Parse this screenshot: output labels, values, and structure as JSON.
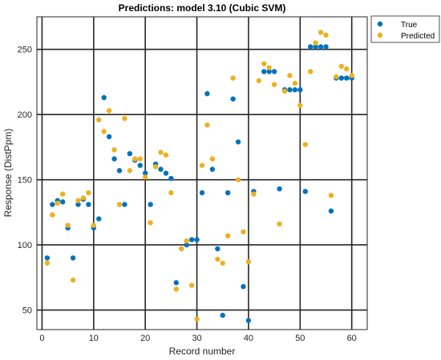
{
  "chart_data": {
    "type": "scatter",
    "title": "Predictions: model 3.10 (Cubic SVM)",
    "xlabel": "Record number",
    "ylabel": "Response (DistPpm)",
    "xlim": [
      -1,
      63
    ],
    "ylim": [
      35,
      275
    ],
    "xticks": [
      0,
      10,
      20,
      30,
      40,
      50,
      60
    ],
    "yticks": [
      50,
      100,
      150,
      200,
      250
    ],
    "grid": true,
    "legend_position": "outside-top-right",
    "series": [
      {
        "name": "True",
        "color": "#0072BD",
        "points": [
          [
            1,
            90
          ],
          [
            2,
            131
          ],
          [
            3,
            134
          ],
          [
            4,
            133
          ],
          [
            5,
            113
          ],
          [
            6,
            90
          ],
          [
            7,
            131
          ],
          [
            8,
            135
          ],
          [
            9,
            131
          ],
          [
            10,
            113
          ],
          [
            11,
            120
          ],
          [
            12,
            213
          ],
          [
            13,
            183
          ],
          [
            14,
            166
          ],
          [
            15,
            157
          ],
          [
            16,
            131
          ],
          [
            17,
            170
          ],
          [
            18,
            165
          ],
          [
            19,
            161
          ],
          [
            20,
            155
          ],
          [
            21,
            131
          ],
          [
            22,
            162
          ],
          [
            23,
            158
          ],
          [
            24,
            155
          ],
          [
            25,
            151
          ],
          [
            26,
            71
          ],
          [
            27,
            97
          ],
          [
            28,
            100
          ],
          [
            29,
            104
          ],
          [
            30,
            104
          ],
          [
            31,
            140
          ],
          [
            32,
            216
          ],
          [
            33,
            158
          ],
          [
            34,
            97
          ],
          [
            35,
            46
          ],
          [
            36,
            140
          ],
          [
            37,
            212
          ],
          [
            38,
            179
          ],
          [
            39,
            68
          ],
          [
            40,
            42
          ],
          [
            41,
            141
          ],
          [
            43,
            233
          ],
          [
            44,
            233
          ],
          [
            45,
            233
          ],
          [
            46,
            143
          ],
          [
            47,
            219
          ],
          [
            48,
            219
          ],
          [
            49,
            219
          ],
          [
            50,
            219
          ],
          [
            51,
            141
          ],
          [
            52,
            252
          ],
          [
            53,
            252
          ],
          [
            54,
            252
          ],
          [
            55,
            252
          ],
          [
            56,
            126
          ],
          [
            57,
            228
          ],
          [
            58,
            228
          ],
          [
            59,
            228
          ],
          [
            60,
            228
          ]
        ]
      },
      {
        "name": "Predicted",
        "color": "#EDB120",
        "points": [
          [
            1,
            86
          ],
          [
            2,
            123
          ],
          [
            3,
            132
          ],
          [
            4,
            139
          ],
          [
            5,
            115
          ],
          [
            6,
            73
          ],
          [
            7,
            134
          ],
          [
            8,
            136
          ],
          [
            9,
            140
          ],
          [
            10,
            115
          ],
          [
            11,
            196
          ],
          [
            12,
            187
          ],
          [
            13,
            203
          ],
          [
            14,
            173
          ],
          [
            15,
            131
          ],
          [
            16,
            197
          ],
          [
            17,
            157
          ],
          [
            18,
            166
          ],
          [
            19,
            166
          ],
          [
            20,
            152
          ],
          [
            21,
            117
          ],
          [
            22,
            160
          ],
          [
            23,
            171
          ],
          [
            24,
            169
          ],
          [
            25,
            140
          ],
          [
            26,
            66
          ],
          [
            27,
            97
          ],
          [
            28,
            103
          ],
          [
            29,
            69
          ],
          [
            30,
            43
          ],
          [
            31,
            161
          ],
          [
            32,
            192
          ],
          [
            33,
            166
          ],
          [
            34,
            89
          ],
          [
            35,
            86
          ],
          [
            36,
            107
          ],
          [
            37,
            228
          ],
          [
            38,
            150
          ],
          [
            39,
            110
          ],
          [
            40,
            87
          ],
          [
            41,
            139
          ],
          [
            42,
            226
          ],
          [
            43,
            239
          ],
          [
            44,
            236
          ],
          [
            45,
            223
          ],
          [
            46,
            116
          ],
          [
            47,
            218
          ],
          [
            48,
            230
          ],
          [
            49,
            224
          ],
          [
            50,
            207
          ],
          [
            51,
            177
          ],
          [
            52,
            233
          ],
          [
            53,
            255
          ],
          [
            54,
            263
          ],
          [
            55,
            261
          ],
          [
            56,
            138
          ],
          [
            57,
            229
          ],
          [
            58,
            237
          ],
          [
            59,
            235
          ],
          [
            60,
            230
          ]
        ]
      }
    ]
  }
}
